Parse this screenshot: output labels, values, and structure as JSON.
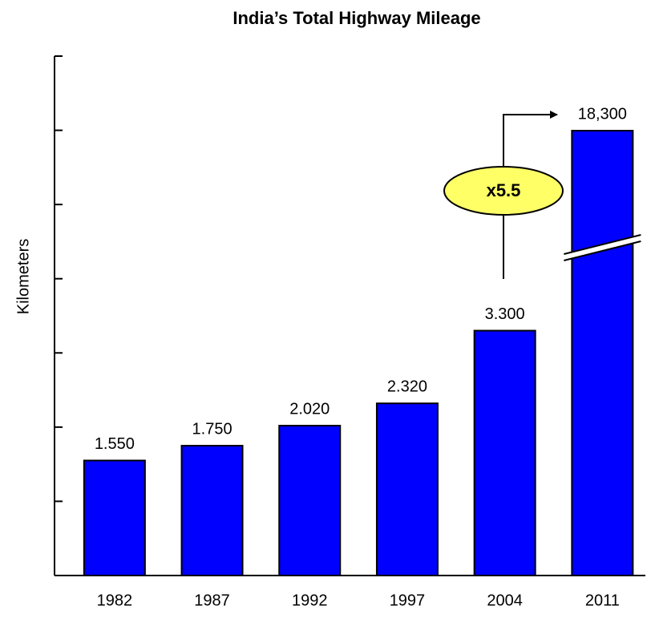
{
  "chart_data": {
    "type": "bar",
    "title": "India’s Total Highway Mileage",
    "y_label": "Kilometers",
    "categories": [
      "1982",
      "1987",
      "1992",
      "1997",
      "2004",
      "2011"
    ],
    "values": [
      1550,
      1750,
      2020,
      2320,
      3300,
      18300
    ],
    "value_labels": [
      "1.550",
      "1.750",
      "2.020",
      "2.320",
      "3.300",
      "18,300"
    ],
    "color": "#0000ff",
    "ylim": [
      0,
      7000
    ],
    "yticks": [
      0,
      1000,
      2000,
      3000,
      4000,
      5000,
      6000,
      7000
    ],
    "axis_break": true,
    "annotation": "x5.5"
  }
}
